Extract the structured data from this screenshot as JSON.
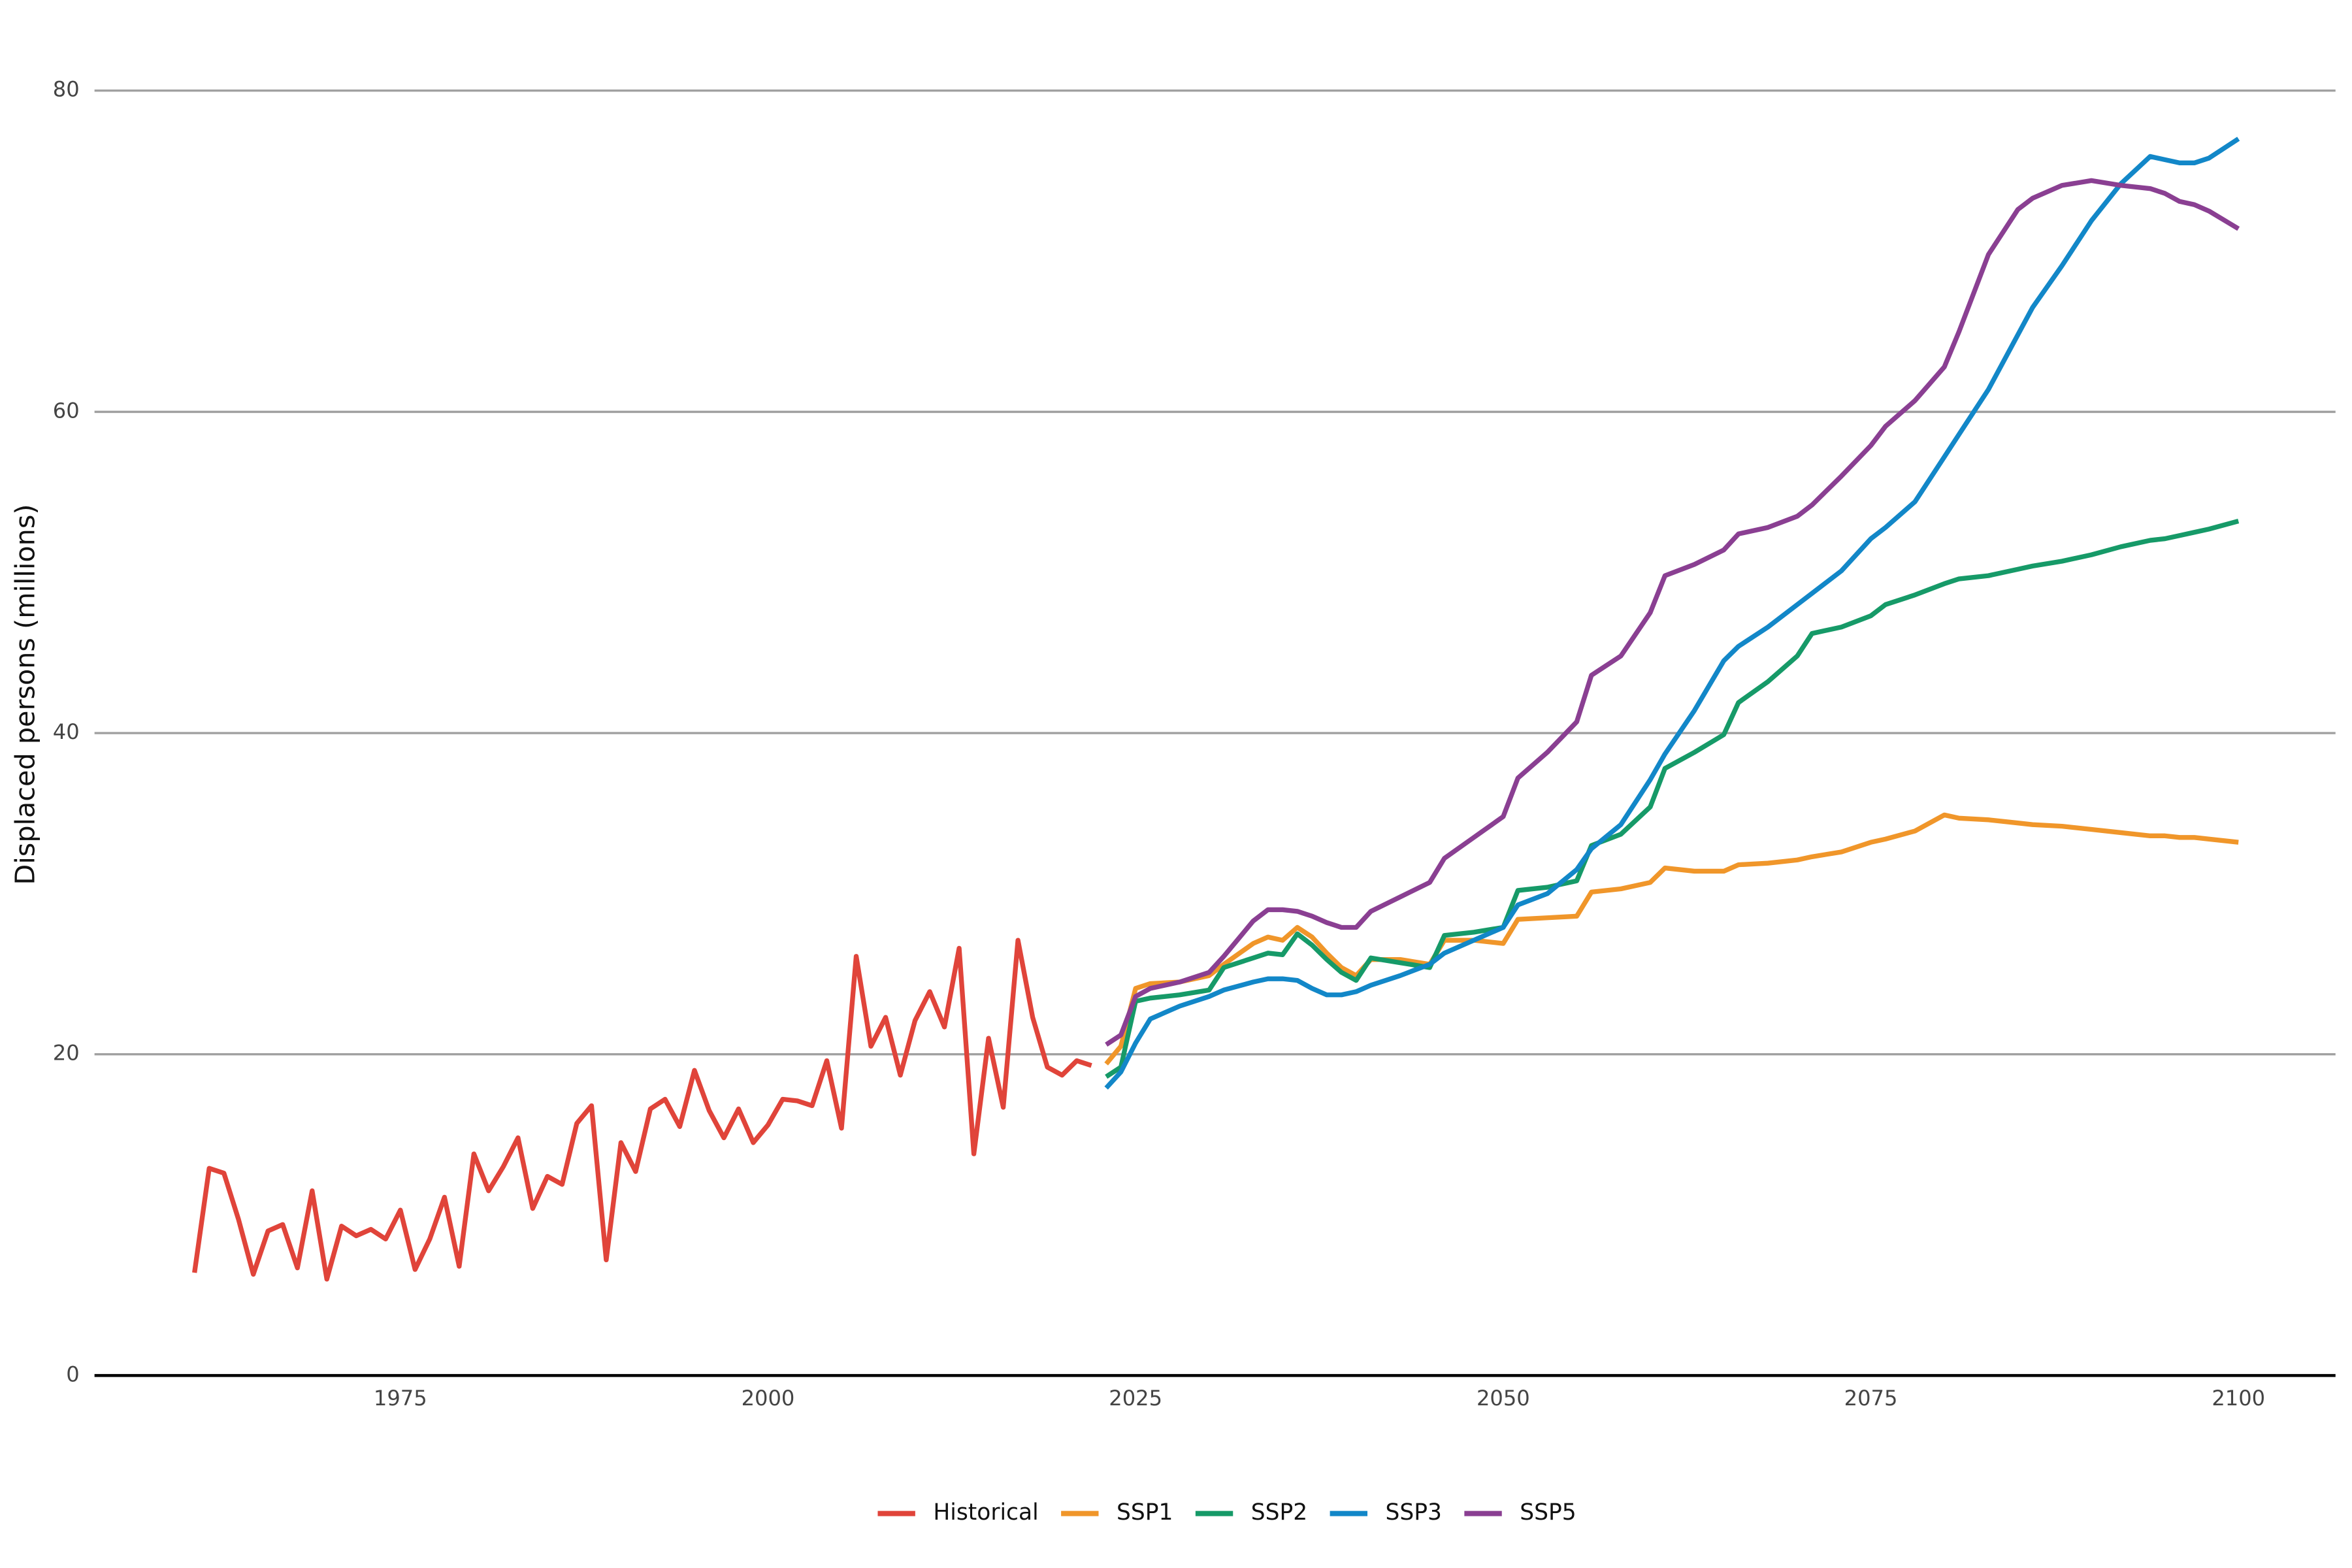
{
  "chart_data": {
    "type": "line",
    "y_label": "Displaced persons (millions)",
    "xlim": [
      1954.2,
      2106.6
    ],
    "ylim": [
      0,
      82
    ],
    "xticks": [
      1975,
      2000,
      2025,
      2050,
      2075,
      2100
    ],
    "yticks": [
      0,
      20,
      40,
      60,
      80
    ],
    "grid": true,
    "legend": "bottom",
    "series": [
      {
        "name": "Historical",
        "color": "#e0443a",
        "x": [
          1961,
          1962,
          1963,
          1964,
          1965,
          1966,
          1967,
          1968,
          1969,
          1970,
          1971,
          1972,
          1973,
          1974,
          1975,
          1976,
          1977,
          1978,
          1979,
          1980,
          1981,
          1982,
          1983,
          1984,
          1985,
          1986,
          1987,
          1988,
          1989,
          1990,
          1991,
          1992,
          1993,
          1994,
          1995,
          1996,
          1997,
          1998,
          1999,
          2000,
          2001,
          2002,
          2003,
          2004,
          2005,
          2006,
          2007,
          2008,
          2009,
          2010,
          2011,
          2012,
          2013,
          2014,
          2015,
          2016,
          2017,
          2018,
          2019,
          2020,
          2021,
          2022
        ],
        "values": [
          6.4,
          12.9,
          12.6,
          9.7,
          6.3,
          9.0,
          9.4,
          6.7,
          11.5,
          6.0,
          9.3,
          8.7,
          9.1,
          8.5,
          10.3,
          6.6,
          8.5,
          11.1,
          6.8,
          13.8,
          11.5,
          13.0,
          14.8,
          10.4,
          12.4,
          11.9,
          15.7,
          16.8,
          7.2,
          14.5,
          12.7,
          16.6,
          17.2,
          15.5,
          19.0,
          16.5,
          14.8,
          16.6,
          14.5,
          15.6,
          17.2,
          17.1,
          16.8,
          19.6,
          15.4,
          26.1,
          20.5,
          22.3,
          18.7,
          22.1,
          23.9,
          21.7,
          26.6,
          13.8,
          21.0,
          16.7,
          27.1,
          22.3,
          19.2,
          18.7,
          19.6,
          19.3
        ]
      },
      {
        "name": "SSP1",
        "color": "#f0962a",
        "x": [
          2023,
          2024,
          2025,
          2026,
          2028,
          2030,
          2031,
          2033,
          2034,
          2035,
          2036,
          2037,
          2038,
          2039,
          2040,
          2041,
          2043,
          2045,
          2046,
          2048,
          2050,
          2051,
          2053,
          2055,
          2056,
          2058,
          2060,
          2061,
          2063,
          2065,
          2066,
          2068,
          2070,
          2071,
          2073,
          2075,
          2076,
          2078,
          2080,
          2081,
          2083,
          2085,
          2086,
          2088,
          2090,
          2092,
          2094,
          2095,
          2096,
          2097,
          2098,
          2100
        ],
        "values": [
          19.4,
          20.5,
          24.1,
          24.4,
          24.5,
          24.9,
          25.6,
          26.9,
          27.3,
          27.1,
          27.9,
          27.3,
          26.3,
          25.4,
          24.9,
          25.9,
          25.9,
          25.6,
          27.1,
          27.1,
          26.9,
          28.4,
          28.5,
          28.6,
          30.1,
          30.3,
          30.7,
          31.6,
          31.4,
          31.4,
          31.8,
          31.9,
          32.1,
          32.3,
          32.6,
          33.2,
          33.4,
          33.9,
          34.9,
          34.7,
          34.6,
          34.4,
          34.3,
          34.2,
          34.0,
          33.8,
          33.6,
          33.6,
          33.5,
          33.5,
          33.4,
          33.2
        ]
      },
      {
        "name": "SSP2",
        "color": "#169a68",
        "x": [
          2023,
          2024,
          2025,
          2026,
          2028,
          2030,
          2031,
          2033,
          2034,
          2035,
          2036,
          2037,
          2038,
          2039,
          2040,
          2041,
          2043,
          2045,
          2046,
          2048,
          2050,
          2051,
          2053,
          2055,
          2056,
          2058,
          2060,
          2061,
          2063,
          2065,
          2066,
          2068,
          2070,
          2071,
          2073,
          2075,
          2076,
          2078,
          2080,
          2081,
          2083,
          2085,
          2086,
          2088,
          2090,
          2092,
          2094,
          2095,
          2096,
          2097,
          2098,
          2100
        ],
        "values": [
          18.6,
          19.2,
          23.3,
          23.5,
          23.7,
          24.0,
          25.4,
          26.0,
          26.3,
          26.2,
          27.5,
          26.8,
          25.9,
          25.1,
          24.6,
          26.0,
          25.7,
          25.4,
          27.4,
          27.6,
          27.9,
          30.2,
          30.4,
          30.8,
          33.0,
          33.7,
          35.4,
          37.8,
          38.8,
          39.9,
          41.9,
          43.2,
          44.8,
          46.2,
          46.6,
          47.3,
          48.0,
          48.6,
          49.3,
          49.6,
          49.8,
          50.2,
          50.4,
          50.7,
          51.1,
          51.6,
          52.0,
          52.1,
          52.3,
          52.5,
          52.7,
          53.2
        ]
      },
      {
        "name": "SSP3",
        "color": "#1287c8",
        "x": [
          2023,
          2024,
          2025,
          2026,
          2028,
          2030,
          2031,
          2033,
          2034,
          2035,
          2036,
          2037,
          2038,
          2039,
          2040,
          2041,
          2043,
          2045,
          2046,
          2048,
          2050,
          2051,
          2053,
          2055,
          2056,
          2058,
          2060,
          2061,
          2063,
          2065,
          2066,
          2068,
          2070,
          2071,
          2073,
          2075,
          2076,
          2078,
          2080,
          2081,
          2083,
          2085,
          2086,
          2088,
          2090,
          2092,
          2094,
          2095,
          2096,
          2097,
          2098,
          2100
        ],
        "values": [
          17.9,
          18.9,
          20.7,
          22.2,
          23.0,
          23.6,
          24.0,
          24.5,
          24.7,
          24.7,
          24.6,
          24.1,
          23.7,
          23.7,
          23.9,
          24.3,
          24.9,
          25.6,
          26.3,
          27.1,
          27.9,
          29.3,
          30.0,
          31.5,
          32.8,
          34.3,
          37.1,
          38.7,
          41.4,
          44.5,
          45.4,
          46.6,
          48.0,
          48.7,
          50.1,
          52.1,
          52.8,
          54.4,
          57.2,
          58.6,
          61.4,
          64.8,
          66.5,
          69.1,
          71.9,
          74.2,
          75.9,
          75.7,
          75.5,
          75.5,
          75.8,
          77.0
        ]
      },
      {
        "name": "SSP5",
        "color": "#8a3f92",
        "x": [
          2023,
          2024,
          2025,
          2026,
          2028,
          2030,
          2031,
          2033,
          2034,
          2035,
          2036,
          2037,
          2038,
          2039,
          2040,
          2041,
          2043,
          2045,
          2046,
          2048,
          2050,
          2051,
          2053,
          2055,
          2056,
          2058,
          2060,
          2061,
          2063,
          2065,
          2066,
          2068,
          2070,
          2071,
          2073,
          2075,
          2076,
          2078,
          2080,
          2081,
          2083,
          2085,
          2086,
          2088,
          2090,
          2092,
          2094,
          2095,
          2096,
          2097,
          2098,
          2100
        ],
        "values": [
          20.6,
          21.2,
          23.6,
          24.1,
          24.5,
          25.1,
          26.1,
          28.3,
          29.0,
          29.0,
          28.9,
          28.6,
          28.2,
          27.9,
          27.9,
          28.9,
          29.8,
          30.7,
          32.2,
          33.5,
          34.8,
          37.2,
          38.8,
          40.7,
          43.6,
          44.8,
          47.5,
          49.8,
          50.5,
          51.4,
          52.4,
          52.8,
          53.5,
          54.2,
          56.0,
          57.9,
          59.1,
          60.7,
          62.8,
          65.0,
          69.8,
          72.6,
          73.3,
          74.1,
          74.4,
          74.1,
          73.9,
          73.6,
          73.1,
          72.9,
          72.5,
          71.4
        ]
      }
    ]
  }
}
